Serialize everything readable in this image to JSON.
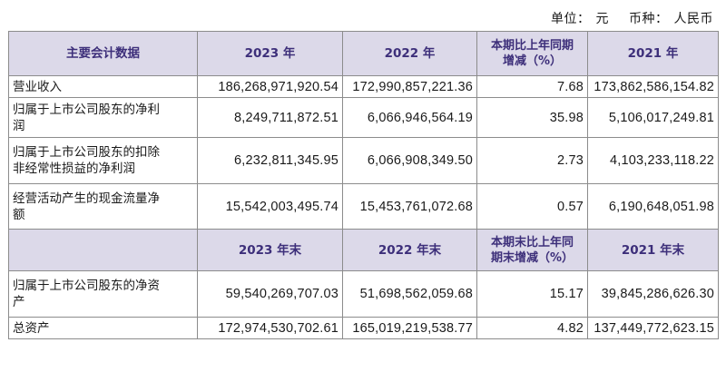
{
  "unit": {
    "unit_label": "单位：",
    "unit_value": "元",
    "currency_label": "币种：",
    "currency_value": "人民币"
  },
  "header1": {
    "col0": "主要会计数据",
    "col1": "2023 年",
    "col2": "2022 年",
    "col3_line1": "本期比上年同期",
    "col3_line2": "增减（%）",
    "col4": "2021 年"
  },
  "header2": {
    "col1": "2023 年末",
    "col2": "2022 年末",
    "col3_line1": "本期末比上年同",
    "col3_line2": "期末增减（%）",
    "col4": "2021 年末"
  },
  "rows1": [
    {
      "label_line1": "营业收入",
      "label_line2": "",
      "v2023": "186,268,971,920.54",
      "v2022": "172,990,857,221.36",
      "change": "7.68",
      "v2021": "173,862,586,154.82"
    },
    {
      "label_line1": "归属于上市公司股东的净利",
      "label_line2": "润",
      "v2023": "8,249,711,872.51",
      "v2022": "6,066,946,564.19",
      "change": "35.98",
      "v2021": "5,106,017,249.81"
    },
    {
      "label_line1": "归属于上市公司股东的扣除",
      "label_line2": "非经常性损益的净利润",
      "v2023": "6,232,811,345.95",
      "v2022": "6,066,908,349.50",
      "change": "2.73",
      "v2021": "4,103,233,118.22"
    },
    {
      "label_line1": "经营活动产生的现金流量净",
      "label_line2": "额",
      "v2023": "15,542,003,495.74",
      "v2022": "15,453,761,072.68",
      "change": "0.57",
      "v2021": "6,190,648,051.98"
    }
  ],
  "rows2": [
    {
      "label_line1": "归属于上市公司股东的净资",
      "label_line2": "产",
      "v2023": "59,540,269,707.03",
      "v2022": "51,698,562,059.68",
      "change": "15.17",
      "v2021": "39,845,286,626.30"
    },
    {
      "label_line1": "总资产",
      "label_line2": "",
      "v2023": "172,974,530,702.61",
      "v2022": "165,019,219,538.77",
      "change": "4.82",
      "v2021": "137,449,772,623.15"
    }
  ]
}
